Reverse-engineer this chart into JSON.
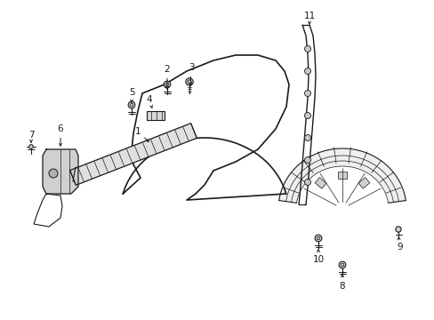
{
  "background_color": "#ffffff",
  "fig_width": 4.89,
  "fig_height": 3.6,
  "dpi": 100,
  "line_color": "#1a1a1a",
  "text_color": "#1a1a1a",
  "label_fontsize": 7.5
}
